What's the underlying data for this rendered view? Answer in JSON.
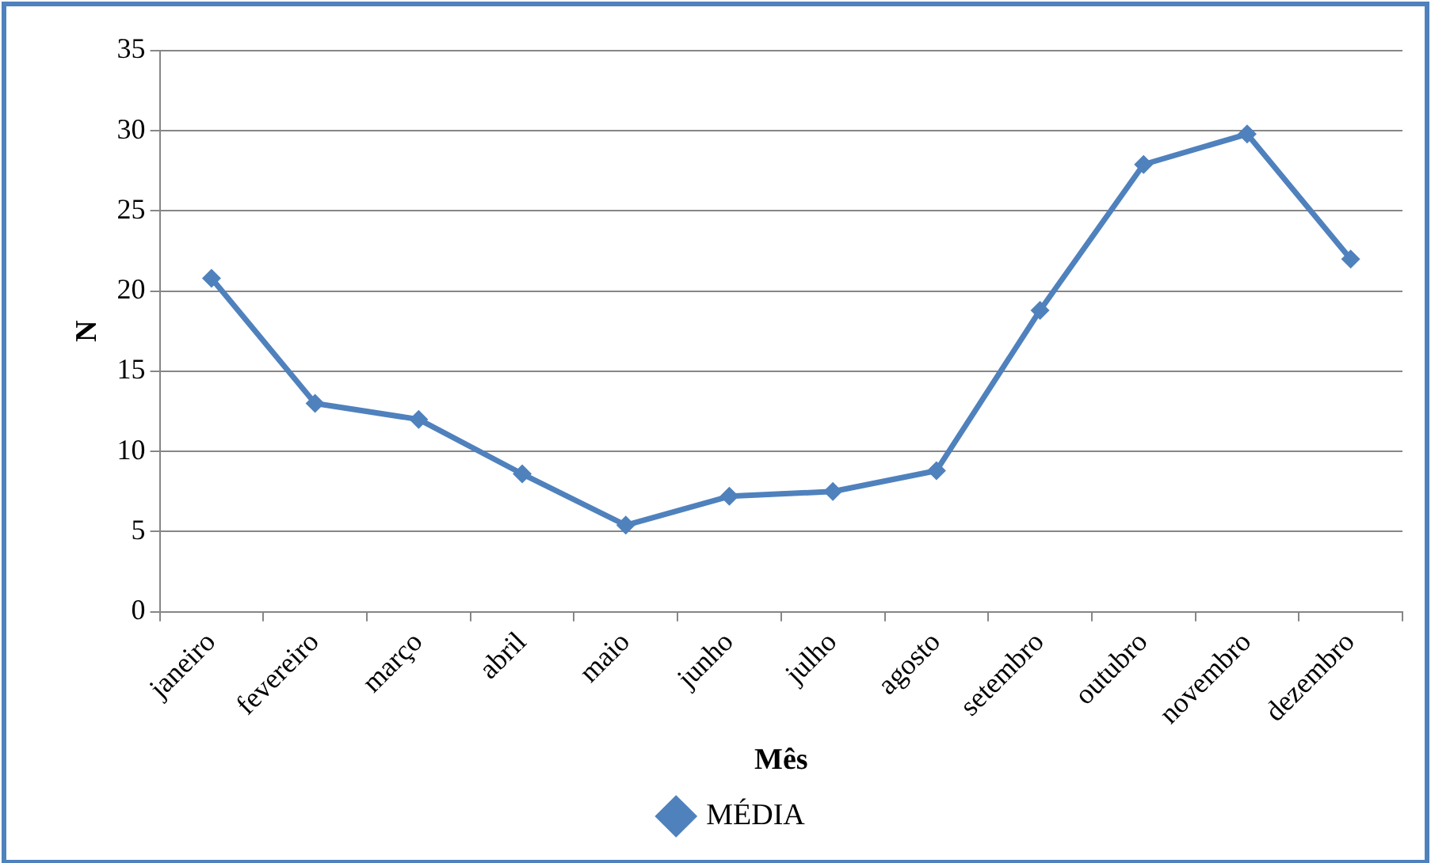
{
  "chart_data": {
    "type": "line",
    "xlabel": "Mês",
    "ylabel": "N",
    "categories": [
      "janeiro",
      "fevereiro",
      "março",
      "abril",
      "maio",
      "junho",
      "julho",
      "agosto",
      "setembro",
      "outubro",
      "novembro",
      "dezembro"
    ],
    "series": [
      {
        "name": "MÉDIA",
        "color": "#4f81bd",
        "values": [
          20.8,
          13,
          12,
          8.6,
          5.4,
          7.2,
          7.5,
          8.8,
          18.8,
          27.9,
          29.8,
          22
        ]
      }
    ],
    "ylim": [
      0,
      35
    ],
    "yticks": [
      0,
      5,
      10,
      15,
      20,
      25,
      30,
      35
    ],
    "grid": "y",
    "legend": "bottom",
    "marker": "diamond",
    "line_style": "solid"
  }
}
